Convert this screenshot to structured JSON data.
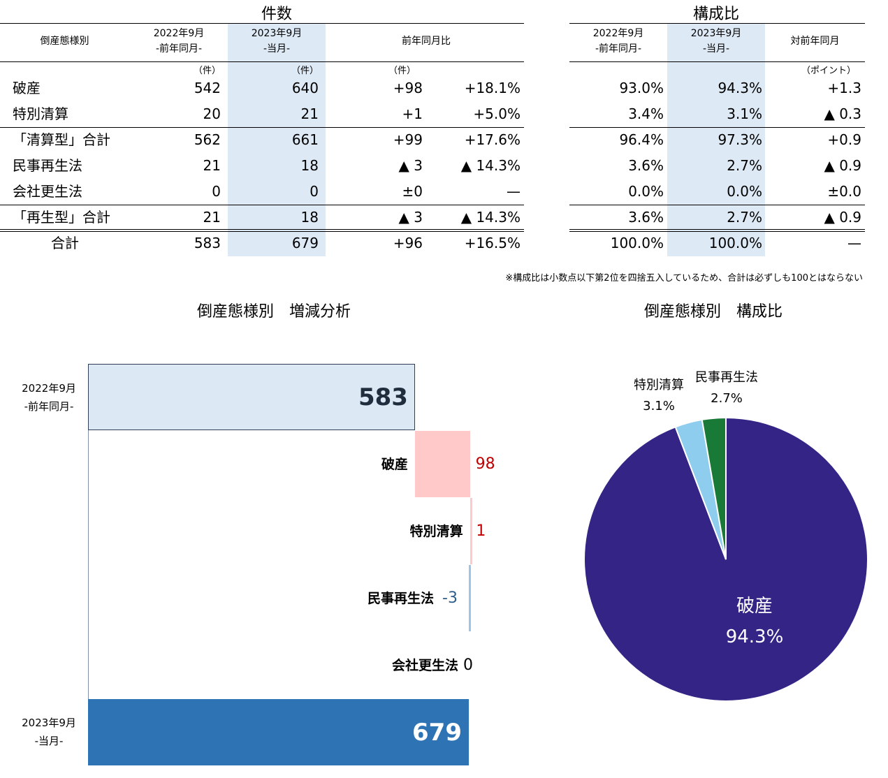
{
  "table": {
    "left_title": "件数",
    "right_title": "構成比",
    "headers": {
      "category": "倒産態様別",
      "prev": [
        "2022年9月",
        "-前年同月-"
      ],
      "curr": [
        "2023年9月",
        "-当月-"
      ],
      "yoy": "前年同月比",
      "share_prev": [
        "2022年9月",
        "-前年同月-"
      ],
      "share_curr": [
        "2023年9月",
        "-当月-"
      ],
      "share_diff": "対前年同月"
    },
    "units": {
      "prev": "（件）",
      "curr": "（件）",
      "diff": "（件）",
      "points": "（ポイント）"
    },
    "rows": [
      {
        "label": "破産",
        "prev": "542",
        "curr": "640",
        "diff": "+98",
        "pct": "+18.1%",
        "s_prev": "93.0%",
        "s_curr": "94.3%",
        "s_diff": "+1.3"
      },
      {
        "label": "特別清算",
        "prev": "20",
        "curr": "21",
        "diff": "+1",
        "pct": "+5.0%",
        "s_prev": "3.4%",
        "s_curr": "3.1%",
        "s_diff": "▲ 0.3"
      },
      {
        "label": "「清算型」合計",
        "prev": "562",
        "curr": "661",
        "diff": "+99",
        "pct": "+17.6%",
        "s_prev": "96.4%",
        "s_curr": "97.3%",
        "s_diff": "+0.9"
      },
      {
        "label": "民事再生法",
        "prev": "21",
        "curr": "18",
        "diff": "▲ 3",
        "pct": "▲ 14.3%",
        "s_prev": "3.6%",
        "s_curr": "2.7%",
        "s_diff": "▲ 0.9"
      },
      {
        "label": "会社更生法",
        "prev": "0",
        "curr": "0",
        "diff": "±0",
        "pct": "—",
        "s_prev": "0.0%",
        "s_curr": "0.0%",
        "s_diff": "±0.0"
      },
      {
        "label": "「再生型」合計",
        "prev": "21",
        "curr": "18",
        "diff": "▲ 3",
        "pct": "▲ 14.3%",
        "s_prev": "3.6%",
        "s_curr": "2.7%",
        "s_diff": "▲ 0.9"
      },
      {
        "label": "合計",
        "prev": "583",
        "curr": "679",
        "diff": "+96",
        "pct": "+16.5%",
        "s_prev": "100.0%",
        "s_curr": "100.0%",
        "s_diff": "—"
      }
    ],
    "note": "※構成比は小数点以下第2位を四捨五入しているため、合計は必ずしも100とはならない"
  },
  "chart_data": [
    {
      "type": "bar",
      "title": "倒産態様別　増減分析",
      "start": {
        "label": [
          "2022年9月",
          "-前年同月-"
        ],
        "value": 583
      },
      "steps": [
        {
          "name": "破産",
          "value": 98
        },
        {
          "name": "特別清算",
          "value": 1
        },
        {
          "name": "民事再生法",
          "value": -3
        },
        {
          "name": "会社更生法",
          "value": 0
        }
      ],
      "end": {
        "label": [
          "2023年9月",
          "-当月-"
        ],
        "value": 679
      },
      "xlim": [
        0,
        790
      ],
      "colors": {
        "start": "#dce8f4",
        "end": "#2e74b5",
        "increase": "#ffc9c9",
        "decrease": "#9dc3e6",
        "increase_text": "#c00000",
        "decrease_text": "#2f5f8a"
      }
    },
    {
      "type": "pie",
      "title": "倒産態様別　構成比",
      "slices": [
        {
          "name": "破産",
          "value": 94.3,
          "label": "94.3%",
          "color": "#342486"
        },
        {
          "name": "特別清算",
          "value": 3.1,
          "label": "3.1%",
          "color": "#8fcdee"
        },
        {
          "name": "民事再生法",
          "value": 2.7,
          "label": "2.7%",
          "color": "#187a36"
        }
      ]
    }
  ]
}
